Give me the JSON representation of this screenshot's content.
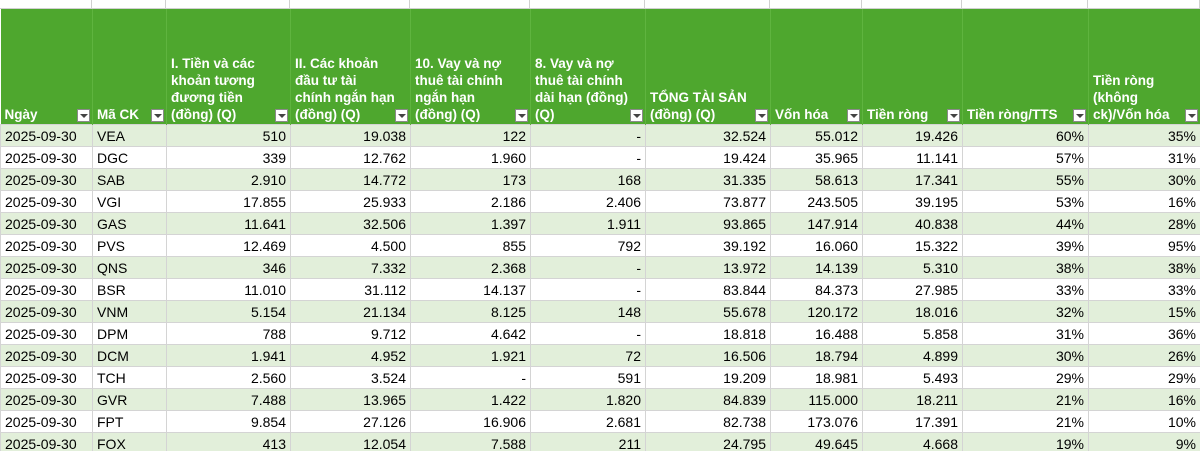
{
  "table": {
    "headers": [
      "Ngày",
      "Mã CK",
      "I. Tiền và các khoản tương đương tiền (đồng) (Q)",
      "II. Các khoản đầu tư tài chính ngắn hạn (đồng) (Q)",
      "10. Vay và nợ thuê tài chính ngắn hạn (đồng) (Q)",
      "8. Vay và nợ thuê tài chính dài hạn (đồng) (Q)",
      "TỔNG TÀI SẢN (đồng) (Q)",
      "Vốn hóa",
      "Tiền ròng",
      "Tiền ròng/TTS",
      "Tiền ròng (không ck)/Vốn hóa"
    ],
    "rows": [
      [
        "2025-09-30",
        "VEA",
        "510",
        "19.038",
        "122",
        "-",
        "32.524",
        "55.012",
        "19.426",
        "60%",
        "35%"
      ],
      [
        "2025-09-30",
        "DGC",
        "339",
        "12.762",
        "1.960",
        "-",
        "19.424",
        "35.965",
        "11.141",
        "57%",
        "31%"
      ],
      [
        "2025-09-30",
        "SAB",
        "2.910",
        "14.772",
        "173",
        "168",
        "31.335",
        "58.613",
        "17.341",
        "55%",
        "30%"
      ],
      [
        "2025-09-30",
        "VGI",
        "17.855",
        "25.933",
        "2.186",
        "2.406",
        "73.877",
        "243.505",
        "39.195",
        "53%",
        "16%"
      ],
      [
        "2025-09-30",
        "GAS",
        "11.641",
        "32.506",
        "1.397",
        "1.911",
        "93.865",
        "147.914",
        "40.838",
        "44%",
        "28%"
      ],
      [
        "2025-09-30",
        "PVS",
        "12.469",
        "4.500",
        "855",
        "792",
        "39.192",
        "16.060",
        "15.322",
        "39%",
        "95%"
      ],
      [
        "2025-09-30",
        "QNS",
        "346",
        "7.332",
        "2.368",
        "-",
        "13.972",
        "14.139",
        "5.310",
        "38%",
        "38%"
      ],
      [
        "2025-09-30",
        "BSR",
        "11.010",
        "31.112",
        "14.137",
        "-",
        "83.844",
        "84.373",
        "27.985",
        "33%",
        "33%"
      ],
      [
        "2025-09-30",
        "VNM",
        "5.154",
        "21.134",
        "8.125",
        "148",
        "55.678",
        "120.172",
        "18.016",
        "32%",
        "15%"
      ],
      [
        "2025-09-30",
        "DPM",
        "788",
        "9.712",
        "4.642",
        "-",
        "18.818",
        "16.488",
        "5.858",
        "31%",
        "36%"
      ],
      [
        "2025-09-30",
        "DCM",
        "1.941",
        "4.952",
        "1.921",
        "72",
        "16.506",
        "18.794",
        "4.899",
        "30%",
        "26%"
      ],
      [
        "2025-09-30",
        "TCH",
        "2.560",
        "3.524",
        "-",
        "591",
        "19.209",
        "18.981",
        "5.493",
        "29%",
        "29%"
      ],
      [
        "2025-09-30",
        "GVR",
        "7.488",
        "13.965",
        "1.422",
        "1.820",
        "84.839",
        "115.000",
        "18.211",
        "21%",
        "16%"
      ],
      [
        "2025-09-30",
        "FPT",
        "9.854",
        "27.126",
        "16.906",
        "2.681",
        "82.738",
        "173.076",
        "17.391",
        "21%",
        "10%"
      ],
      [
        "2025-09-30",
        "FOX",
        "413",
        "12.054",
        "7.588",
        "211",
        "24.795",
        "49.645",
        "4.668",
        "19%",
        "9%"
      ]
    ]
  }
}
